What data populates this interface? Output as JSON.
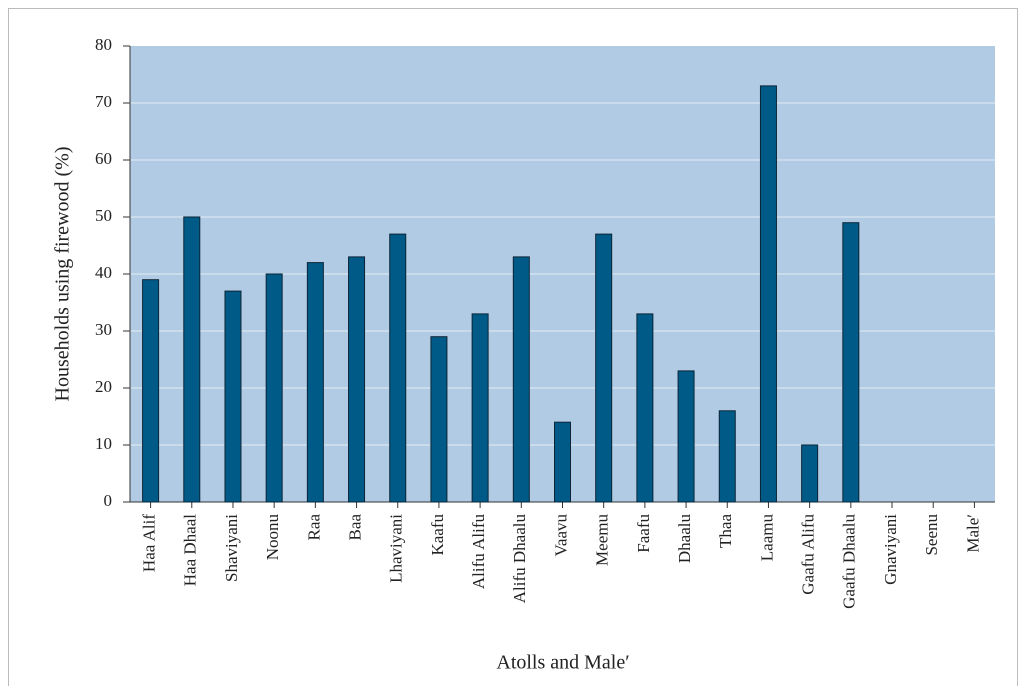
{
  "chart_data": {
    "type": "bar",
    "x_label": "Atolls and Male′",
    "y_label": "Households using firewood (%)",
    "categories": [
      "Haa Alif",
      "Haa Dhaal",
      "Shaviyani",
      "Noonu",
      "Raa",
      "Baa",
      "Lhaviyani",
      "Kaafu",
      "Alifu Alifu",
      "Alifu Dhaalu",
      "Vaavu",
      "Meemu",
      "Faafu",
      "Dhaalu",
      "Thaa",
      "Laamu",
      "Gaafu Alifu",
      "Gaafu Dhaalu",
      "Gnaviyani",
      "Seenu",
      "Male′"
    ],
    "values": [
      39,
      50,
      37,
      40,
      42,
      43,
      47,
      29,
      33,
      43,
      14,
      47,
      33,
      23,
      16,
      73,
      10,
      49,
      0,
      0,
      0
    ],
    "color": "#005a88",
    "ylim": [
      0,
      80
    ],
    "yticks": [
      0,
      10,
      20,
      30,
      40,
      50,
      60,
      70,
      80
    ],
    "grid": true
  }
}
